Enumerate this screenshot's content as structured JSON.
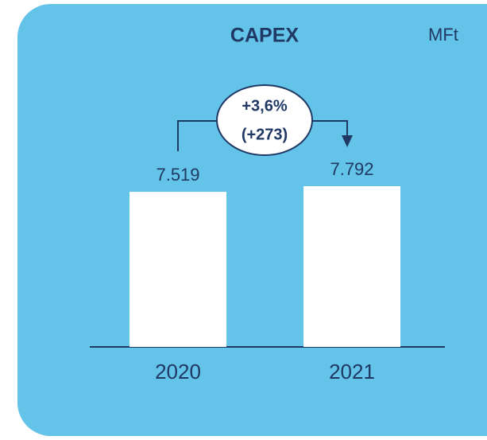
{
  "chart_data": {
    "type": "bar",
    "title": "CAPEX",
    "unit": "MFt",
    "categories": [
      "2020",
      "2021"
    ],
    "values": [
      7519,
      7792
    ],
    "value_labels": [
      "7.519",
      "7.792"
    ],
    "color": "#ffffff",
    "annotations": [
      "+3,6%",
      "(+273)"
    ]
  }
}
